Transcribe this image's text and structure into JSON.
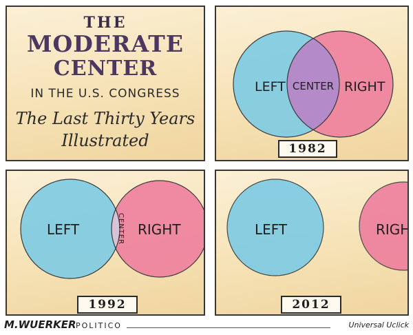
{
  "title_panel": {
    "line1": "THE",
    "line2": "MODERATE",
    "line3": "CENTER",
    "line4": "IN THE U.S. CONGRESS",
    "line5": "The Last Thirty Years",
    "line6": "Illustrated"
  },
  "panels": [
    {
      "year": "1982",
      "left": "LEFT",
      "center": "CENTER",
      "right": "RIGHT"
    },
    {
      "year": "1992",
      "left": "LEFT",
      "center": "CENTER",
      "right": "RIGHT"
    },
    {
      "year": "2012",
      "left": "LEFT",
      "right": "RIGH"
    }
  ],
  "colors": {
    "left": "#7fcbe3",
    "right": "#ee7f9e",
    "center": "#b58ac8",
    "paper": "#f6e2b6"
  },
  "footer": {
    "signature": "M.WUERKER",
    "publication": "POLITICO",
    "syndicate": "Universal Uclick"
  }
}
